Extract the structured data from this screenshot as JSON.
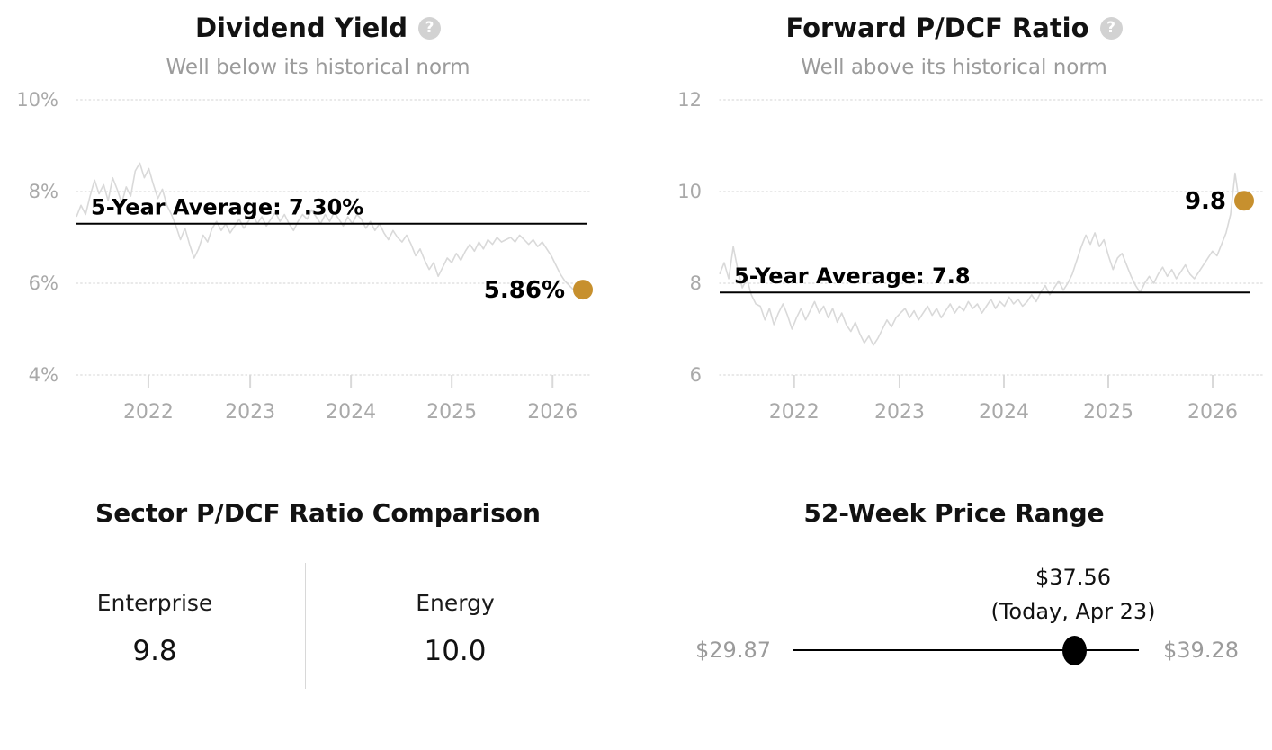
{
  "colors": {
    "title": "#121212",
    "subtitle": "#9b9b9b",
    "axis_label": "#a9a9a9",
    "gridline": "#dcdcdc",
    "series_line": "#d9d9d9",
    "average_line": "#000000",
    "accent_gold": "#c7902e",
    "help_icon_bg": "#d2d2d2",
    "range_gray": "#9b9b9b",
    "range_dot": "#000000"
  },
  "icons": {
    "question_glyph": "?"
  },
  "chart_data": [
    {
      "type": "line",
      "title": "Dividend Yield",
      "subtitle": "Well below its historical norm",
      "help_icon": "question-mark-icon",
      "ylim": [
        4,
        10
      ],
      "y_tick_values": [
        10,
        8,
        6,
        4
      ],
      "y_tick_labels": [
        "10%",
        "8%",
        "6%",
        "4%"
      ],
      "x_tick_labels": [
        "2022",
        "2023",
        "2024",
        "2025",
        "2026"
      ],
      "grid": "dotted",
      "average": {
        "label": "5-Year Average: 7.30%",
        "value": 7.3
      },
      "current": {
        "label": "5.86%",
        "value": 5.86
      },
      "values": [
        7.45,
        7.7,
        7.5,
        7.9,
        8.25,
        7.95,
        8.15,
        7.8,
        8.3,
        8.05,
        7.75,
        8.1,
        7.9,
        8.45,
        8.62,
        8.3,
        8.5,
        8.15,
        7.85,
        8.05,
        7.7,
        7.5,
        7.25,
        6.95,
        7.2,
        6.85,
        6.55,
        6.75,
        7.05,
        6.9,
        7.2,
        7.35,
        7.15,
        7.3,
        7.1,
        7.25,
        7.4,
        7.2,
        7.35,
        7.5,
        7.3,
        7.45,
        7.25,
        7.4,
        7.55,
        7.35,
        7.5,
        7.3,
        7.15,
        7.35,
        7.5,
        7.4,
        7.6,
        7.45,
        7.3,
        7.5,
        7.35,
        7.55,
        7.4,
        7.25,
        7.45,
        7.3,
        7.5,
        7.4,
        7.2,
        7.35,
        7.15,
        7.3,
        7.1,
        6.95,
        7.15,
        7.0,
        6.9,
        7.05,
        6.85,
        6.6,
        6.75,
        6.5,
        6.3,
        6.45,
        6.15,
        6.35,
        6.55,
        6.45,
        6.65,
        6.5,
        6.7,
        6.85,
        6.7,
        6.9,
        6.75,
        6.95,
        6.85,
        7.0,
        6.9,
        6.95,
        7.0,
        6.9,
        7.05,
        6.95,
        6.85,
        6.95,
        6.8,
        6.9,
        6.75,
        6.6,
        6.4,
        6.2,
        6.05,
        5.95,
        5.85,
        5.8,
        5.86
      ]
    },
    {
      "type": "line",
      "title": "Forward P/DCF Ratio",
      "subtitle": "Well above its historical norm",
      "help_icon": "question-mark-icon",
      "ylim": [
        6,
        12
      ],
      "y_tick_values": [
        12,
        10,
        8,
        6
      ],
      "y_tick_labels": [
        "12",
        "10",
        "8",
        "6"
      ],
      "x_tick_labels": [
        "2022",
        "2023",
        "2024",
        "2025",
        "2026"
      ],
      "grid": "dotted",
      "average": {
        "label": "5-Year Average: 7.8",
        "value": 7.8
      },
      "current": {
        "label": "9.8",
        "value": 9.8
      },
      "values": [
        8.2,
        8.45,
        8.1,
        8.8,
        8.3,
        7.9,
        8.1,
        7.75,
        7.55,
        7.5,
        7.2,
        7.45,
        7.1,
        7.35,
        7.55,
        7.3,
        7.0,
        7.25,
        7.45,
        7.2,
        7.4,
        7.6,
        7.35,
        7.5,
        7.25,
        7.45,
        7.15,
        7.35,
        7.1,
        6.95,
        7.15,
        6.9,
        6.7,
        6.85,
        6.65,
        6.8,
        7.0,
        7.2,
        7.05,
        7.25,
        7.35,
        7.45,
        7.25,
        7.4,
        7.2,
        7.35,
        7.5,
        7.3,
        7.45,
        7.25,
        7.4,
        7.55,
        7.35,
        7.5,
        7.4,
        7.6,
        7.45,
        7.55,
        7.35,
        7.5,
        7.65,
        7.45,
        7.6,
        7.5,
        7.7,
        7.55,
        7.65,
        7.5,
        7.6,
        7.75,
        7.6,
        7.8,
        7.95,
        7.75,
        7.9,
        8.05,
        7.85,
        8.0,
        8.2,
        8.5,
        8.8,
        9.05,
        8.85,
        9.1,
        8.8,
        8.95,
        8.6,
        8.3,
        8.55,
        8.65,
        8.4,
        8.15,
        7.95,
        7.8,
        8.0,
        8.15,
        8.0,
        8.2,
        8.35,
        8.15,
        8.3,
        8.1,
        8.25,
        8.4,
        8.2,
        8.1,
        8.25,
        8.4,
        8.55,
        8.7,
        8.6,
        8.85,
        9.1,
        9.5,
        10.4,
        9.7,
        9.8
      ]
    },
    {
      "type": "table",
      "title": "Sector P/DCF Ratio Comparison",
      "columns": [
        {
          "label": "Enterprise",
          "value": "9.8"
        },
        {
          "label": "Energy",
          "value": "10.0"
        }
      ]
    },
    {
      "type": "range",
      "title": "52-Week Price Range",
      "min": 29.87,
      "max": 39.28,
      "current": 37.56,
      "min_label": "$29.87",
      "max_label": "$39.28",
      "current_label": "$37.56",
      "current_sublabel": "(Today, Apr 23)"
    }
  ]
}
